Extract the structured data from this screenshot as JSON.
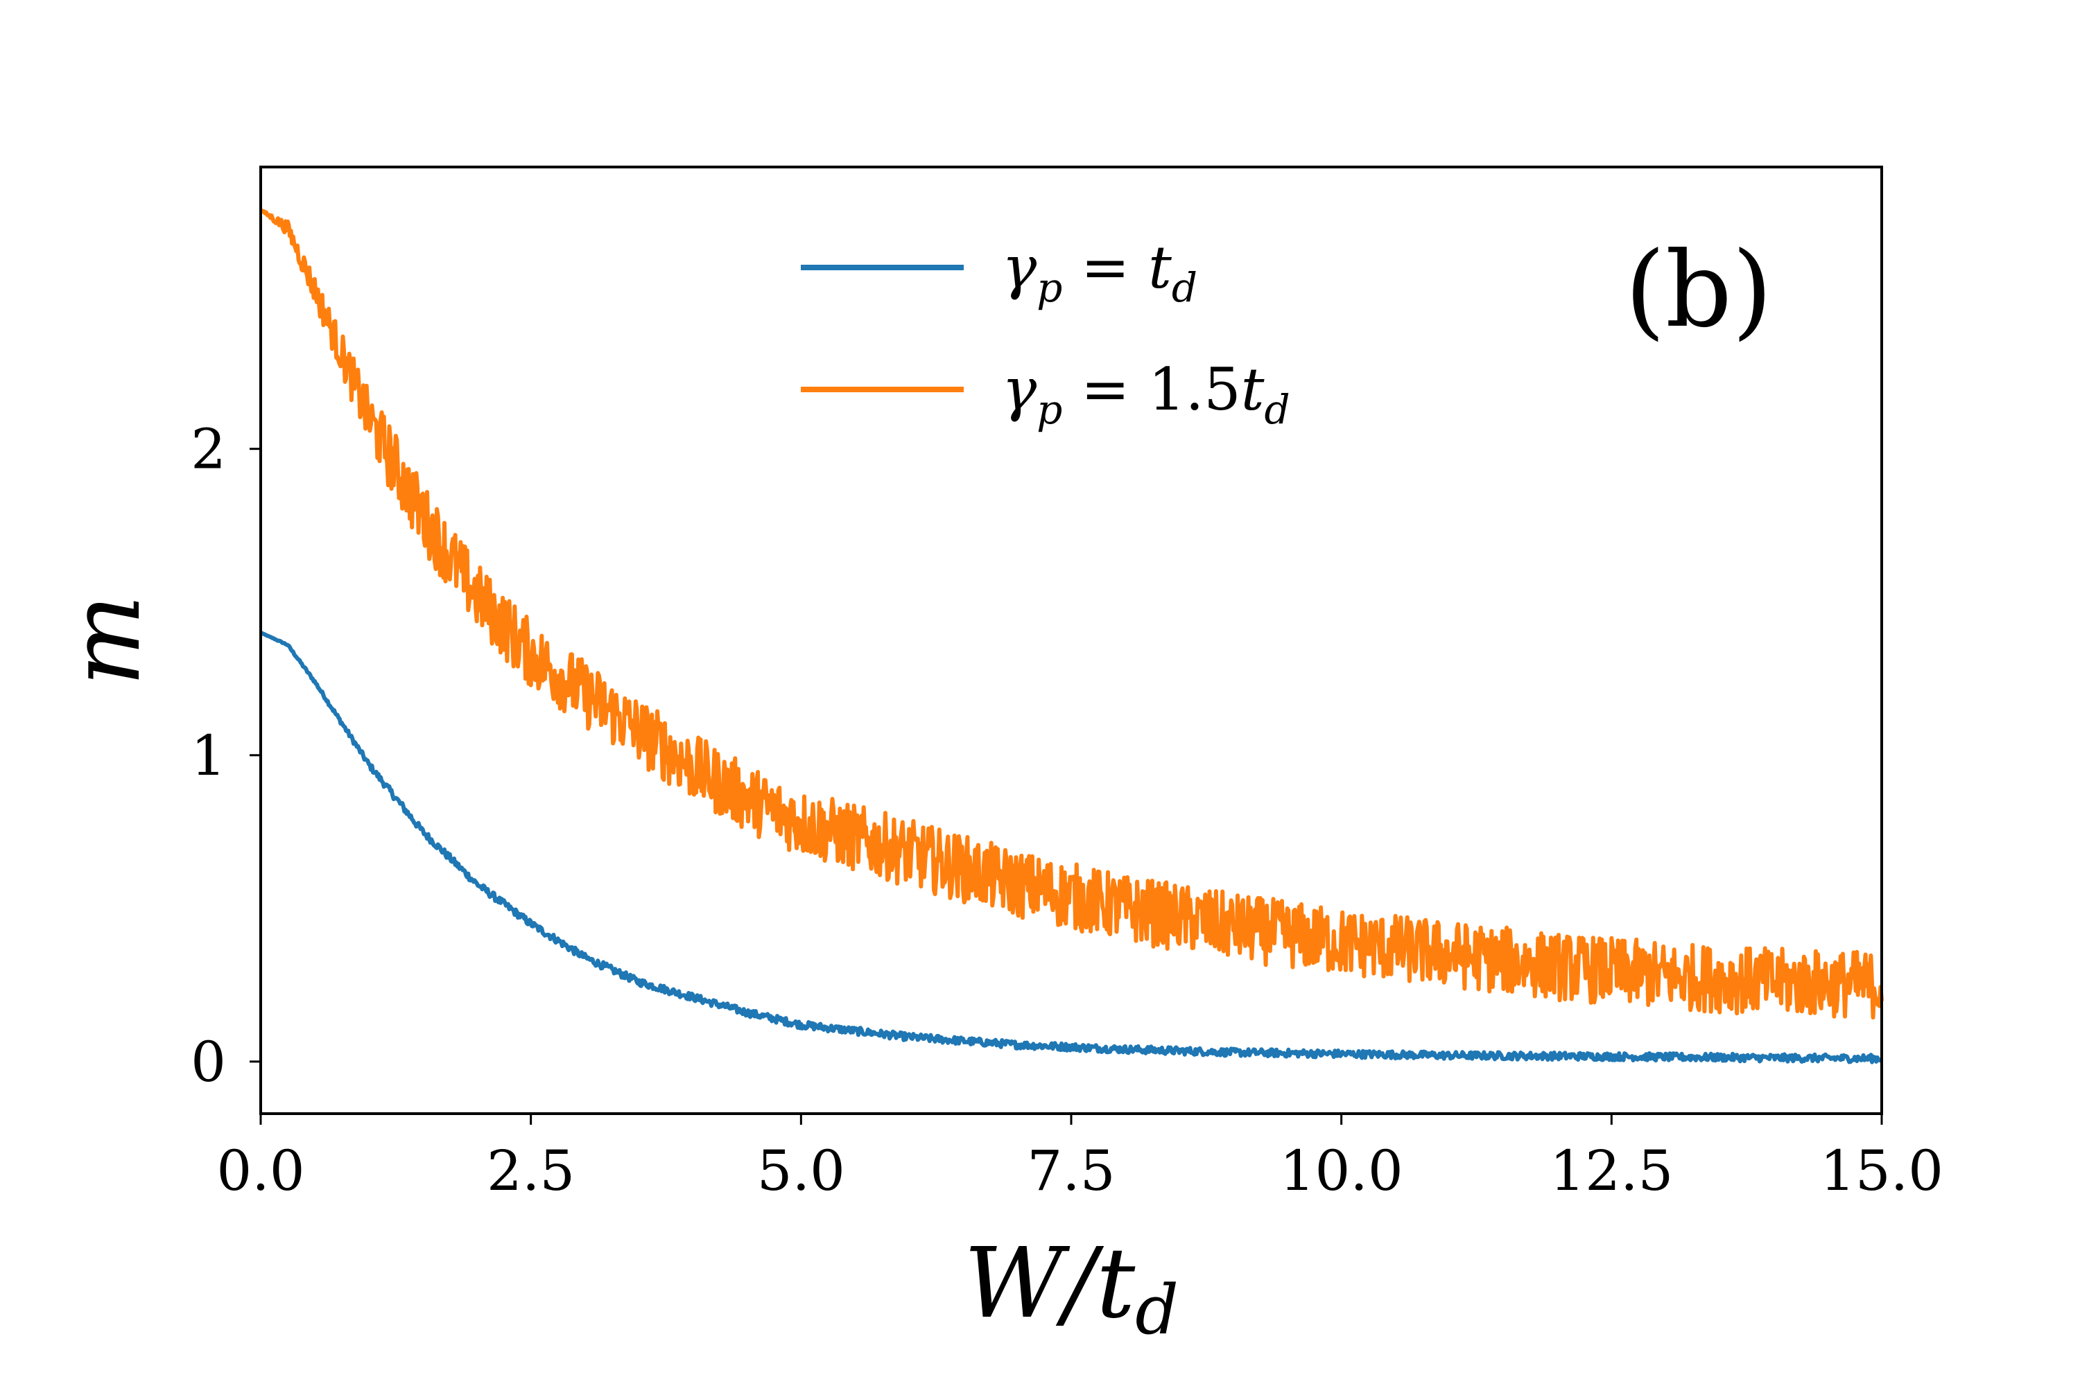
{
  "chart_data": {
    "type": "line",
    "xlabel": "W/t_d",
    "ylabel": "m",
    "panel_label": "(b)",
    "xlim": [
      0,
      15
    ],
    "ylim": [
      -0.17,
      2.92
    ],
    "x_ticks": [
      0.0,
      2.5,
      5.0,
      7.5,
      10.0,
      12.5,
      15.0
    ],
    "x_tick_labels": [
      "0.0",
      "2.5",
      "5.0",
      "7.5",
      "10.0",
      "12.5",
      "15.0"
    ],
    "y_ticks": [
      0,
      1,
      2
    ],
    "y_tick_labels": [
      "0",
      "1",
      "2"
    ],
    "grid": false,
    "legend_placement": "top-center",
    "series": [
      {
        "name": "γp = td",
        "color": "#1f77b4",
        "noise": 0.012,
        "x": [
          0,
          0.25,
          0.5,
          1.0,
          1.5,
          2.0,
          2.5,
          3.0,
          3.5,
          4.0,
          4.5,
          5.0,
          6.0,
          7.0,
          8.0,
          9.0,
          10.0,
          11.0,
          12.0,
          13.0,
          14.0,
          15.0
        ],
        "y": [
          1.4,
          1.36,
          1.24,
          0.97,
          0.75,
          0.58,
          0.45,
          0.34,
          0.26,
          0.21,
          0.16,
          0.12,
          0.08,
          0.055,
          0.04,
          0.03,
          0.025,
          0.02,
          0.018,
          0.015,
          0.012,
          0.01
        ]
      },
      {
        "name": "γp = 1.5td",
        "color": "#ff7f0e",
        "noise": 0.11,
        "x": [
          0,
          0.25,
          0.5,
          1.0,
          1.5,
          2.0,
          2.5,
          3.0,
          3.5,
          4.0,
          4.5,
          5.0,
          6.0,
          7.0,
          8.0,
          9.0,
          10.0,
          11.0,
          12.0,
          13.0,
          14.0,
          15.0
        ],
        "y": [
          2.78,
          2.72,
          2.52,
          2.1,
          1.78,
          1.52,
          1.33,
          1.2,
          1.08,
          0.96,
          0.86,
          0.78,
          0.68,
          0.58,
          0.5,
          0.44,
          0.39,
          0.35,
          0.31,
          0.28,
          0.26,
          0.25
        ]
      }
    ]
  }
}
